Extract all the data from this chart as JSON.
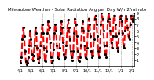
{
  "title": "Milwaukee Weather - Solar Radiation Avg per Day W/m2/minute",
  "line_color": "#ff0000",
  "line_style": "--",
  "line_width": 1.5,
  "marker": ".",
  "marker_size": 2.5,
  "marker_color": "#000000",
  "background_color": "#ffffff",
  "grid_color": "#999999",
  "ylim": [
    0,
    9
  ],
  "yticks": [
    1,
    2,
    3,
    4,
    5,
    6,
    7,
    8,
    9
  ],
  "y_values": [
    1.0,
    0.5,
    1.5,
    4.5,
    6.5,
    5.0,
    2.5,
    0.8,
    0.3,
    0.5,
    1.5,
    3.5,
    6.0,
    4.5,
    2.0,
    1.0,
    1.8,
    3.5,
    6.5,
    5.5,
    3.0,
    1.2,
    0.5,
    1.5,
    3.5,
    5.5,
    7.0,
    5.5,
    3.0,
    1.0,
    0.8,
    2.5,
    5.5,
    7.5,
    6.5,
    4.0,
    1.5,
    0.5,
    1.0,
    2.8,
    5.5,
    7.0,
    6.0,
    3.5,
    1.5,
    1.2,
    3.0,
    5.5,
    7.5,
    6.5,
    4.0,
    2.0,
    1.2,
    1.5,
    3.5,
    6.0,
    7.8,
    6.5,
    4.5,
    2.5,
    1.5,
    1.0,
    2.5,
    5.5,
    8.0,
    7.0,
    5.0,
    2.5,
    1.0,
    0.8,
    1.5,
    3.5,
    6.5,
    7.5,
    6.0,
    3.5,
    1.5,
    1.2,
    3.0,
    6.0,
    8.0,
    7.0,
    5.0,
    2.5,
    1.5,
    1.8,
    4.5,
    8.0,
    8.5,
    7.0,
    5.0,
    2.5,
    1.5,
    3.0,
    7.0,
    9.0,
    8.0,
    6.0,
    3.5,
    2.0,
    1.5,
    3.5,
    7.5,
    9.0,
    8.0,
    6.0,
    4.0,
    3.0,
    5.0,
    8.5,
    8.5,
    7.0,
    5.0,
    3.0,
    2.5,
    5.5,
    8.0,
    8.5,
    7.5,
    5.5,
    3.5,
    3.0,
    6.0,
    8.5,
    8.0,
    6.5,
    5.0,
    4.5,
    7.0,
    8.5,
    8.0,
    7.5,
    8.5,
    9.0
  ],
  "n_points": 134,
  "vgrid_every": 13,
  "xtick_labels": [
    "4/1",
    "5/1",
    "6/1",
    "7/1",
    "8/1",
    "9/1",
    "10/1",
    "11/1",
    "12/1",
    "1/1",
    "2/1",
    "3/1",
    "4/1",
    "5/1"
  ],
  "title_fontsize": 4.0,
  "tick_fontsize": 3.5,
  "ylabel_right": true
}
